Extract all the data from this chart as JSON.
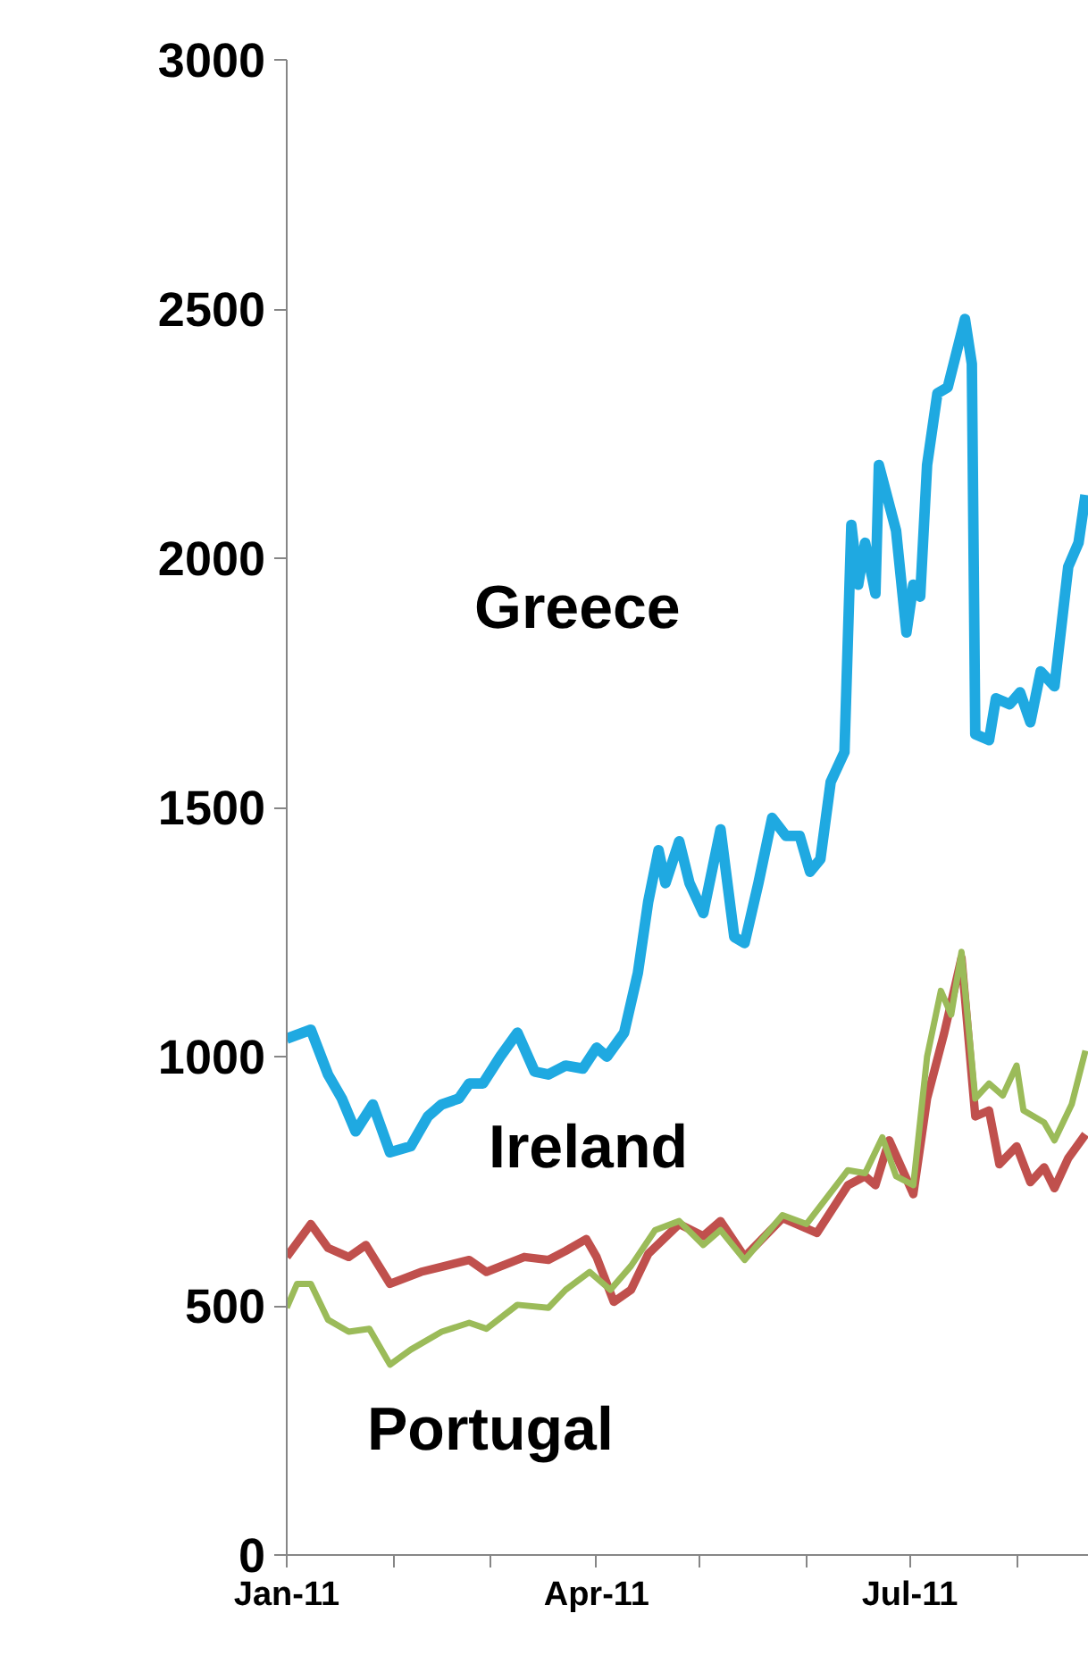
{
  "chart_data": {
    "type": "line",
    "xlim": [
      "2011-01-01",
      "2011-08-22"
    ],
    "ylim": [
      0,
      3000
    ],
    "yticks": [
      0,
      500,
      1000,
      1500,
      2000,
      2500,
      3000
    ],
    "xticks": [
      {
        "value": "2011-01-01",
        "label": "Jan-11"
      },
      {
        "value": "2011-02-01",
        "label": null
      },
      {
        "value": "2011-03-01",
        "label": null
      },
      {
        "value": "2011-04-01",
        "label": "Apr-11"
      },
      {
        "value": "2011-05-01",
        "label": null
      },
      {
        "value": "2011-06-01",
        "label": null
      },
      {
        "value": "2011-07-01",
        "label": "Jul-11"
      },
      {
        "value": "2011-08-01",
        "label": null
      }
    ],
    "grid": false,
    "marker": "none",
    "line_style": "solid",
    "series": [
      {
        "name": "Greece",
        "color": "#1fa9e1",
        "x": [
          "2011-01-01",
          "2011-01-08",
          "2011-01-13",
          "2011-01-17",
          "2011-01-21",
          "2011-01-26",
          "2011-01-31",
          "2011-02-06",
          "2011-02-11",
          "2011-02-15",
          "2011-02-20",
          "2011-02-23",
          "2011-02-27",
          "2011-03-04",
          "2011-03-09",
          "2011-03-14",
          "2011-03-18",
          "2011-03-23",
          "2011-03-28",
          "2011-04-01",
          "2011-04-04",
          "2011-04-09",
          "2011-04-13",
          "2011-04-16",
          "2011-04-19",
          "2011-04-21",
          "2011-04-25",
          "2011-04-28",
          "2011-05-02",
          "2011-05-07",
          "2011-05-11",
          "2011-05-14",
          "2011-05-18",
          "2011-05-22",
          "2011-05-26",
          "2011-05-30",
          "2011-06-02",
          "2011-06-05",
          "2011-06-08",
          "2011-06-12",
          "2011-06-14",
          "2011-06-16",
          "2011-06-18",
          "2011-06-21",
          "2011-06-22",
          "2011-06-27",
          "2011-06-30",
          "2011-07-02",
          "2011-07-04",
          "2011-07-06",
          "2011-07-09",
          "2011-07-12",
          "2011-07-17",
          "2011-07-19",
          "2011-07-20",
          "2011-07-24",
          "2011-07-26",
          "2011-07-30",
          "2011-08-02",
          "2011-08-05",
          "2011-08-08",
          "2011-08-12",
          "2011-08-16",
          "2011-08-19",
          "2011-08-21"
        ],
        "values": [
          1036,
          1054,
          964,
          916,
          850,
          904,
          808,
          820,
          880,
          904,
          916,
          946,
          946,
          1000,
          1048,
          970,
          964,
          982,
          976,
          1018,
          1000,
          1048,
          1168,
          1311,
          1414,
          1348,
          1432,
          1348,
          1288,
          1456,
          1240,
          1228,
          1348,
          1479,
          1443,
          1443,
          1371,
          1396,
          1551,
          1611,
          2067,
          1947,
          2031,
          1929,
          2187,
          2055,
          1851,
          1947,
          1923,
          2187,
          2331,
          2343,
          2480,
          2390,
          1647,
          1635,
          1719,
          1707,
          1731,
          1671,
          1773,
          1743,
          1983,
          2031,
          2127
        ]
      },
      {
        "name": "Ireland",
        "color": "#c0504d",
        "x": [
          "2011-01-01",
          "2011-01-08",
          "2011-01-13",
          "2011-01-19",
          "2011-01-24",
          "2011-01-31",
          "2011-02-09",
          "2011-02-16",
          "2011-02-23",
          "2011-02-28",
          "2011-03-11",
          "2011-03-18",
          "2011-03-23",
          "2011-03-29",
          "2011-04-01",
          "2011-04-06",
          "2011-04-11",
          "2011-04-16",
          "2011-04-25",
          "2011-05-02",
          "2011-05-07",
          "2011-05-14",
          "2011-05-25",
          "2011-06-04",
          "2011-06-13",
          "2011-06-18",
          "2011-06-21",
          "2011-06-25",
          "2011-07-02",
          "2011-07-06",
          "2011-07-11",
          "2011-07-16",
          "2011-07-20",
          "2011-07-24",
          "2011-07-27",
          "2011-08-01",
          "2011-08-05",
          "2011-08-09",
          "2011-08-12",
          "2011-08-16",
          "2011-08-21"
        ],
        "values": [
          598,
          664,
          616,
          598,
          622,
          544,
          568,
          580,
          592,
          568,
          598,
          592,
          610,
          634,
          598,
          508,
          532,
          604,
          664,
          640,
          670,
          598,
          676,
          646,
          742,
          760,
          742,
          832,
          724,
          916,
          1048,
          1198,
          880,
          892,
          784,
          820,
          748,
          778,
          736,
          796,
          844
        ]
      },
      {
        "name": "Portugal",
        "color": "#9bbb59",
        "x": [
          "2011-01-01",
          "2011-01-04",
          "2011-01-08",
          "2011-01-13",
          "2011-01-19",
          "2011-01-25",
          "2011-01-31",
          "2011-02-06",
          "2011-02-15",
          "2011-02-23",
          "2011-02-28",
          "2011-03-09",
          "2011-03-18",
          "2011-03-23",
          "2011-03-30",
          "2011-04-05",
          "2011-04-11",
          "2011-04-18",
          "2011-04-25",
          "2011-05-02",
          "2011-05-07",
          "2011-05-14",
          "2011-05-25",
          "2011-06-01",
          "2011-06-13",
          "2011-06-18",
          "2011-06-23",
          "2011-06-27",
          "2011-07-02",
          "2011-07-06",
          "2011-07-10",
          "2011-07-13",
          "2011-07-16",
          "2011-07-20",
          "2011-07-24",
          "2011-07-28",
          "2011-08-01",
          "2011-08-03",
          "2011-08-09",
          "2011-08-12",
          "2011-08-17",
          "2011-08-21"
        ],
        "values": [
          496,
          544,
          544,
          472,
          448,
          454,
          382,
          412,
          448,
          466,
          454,
          502,
          496,
          532,
          568,
          532,
          580,
          652,
          670,
          622,
          652,
          592,
          682,
          664,
          772,
          766,
          838,
          760,
          742,
          1000,
          1132,
          1084,
          1210,
          916,
          946,
          922,
          982,
          892,
          868,
          832,
          904,
          1012
        ]
      }
    ]
  }
}
